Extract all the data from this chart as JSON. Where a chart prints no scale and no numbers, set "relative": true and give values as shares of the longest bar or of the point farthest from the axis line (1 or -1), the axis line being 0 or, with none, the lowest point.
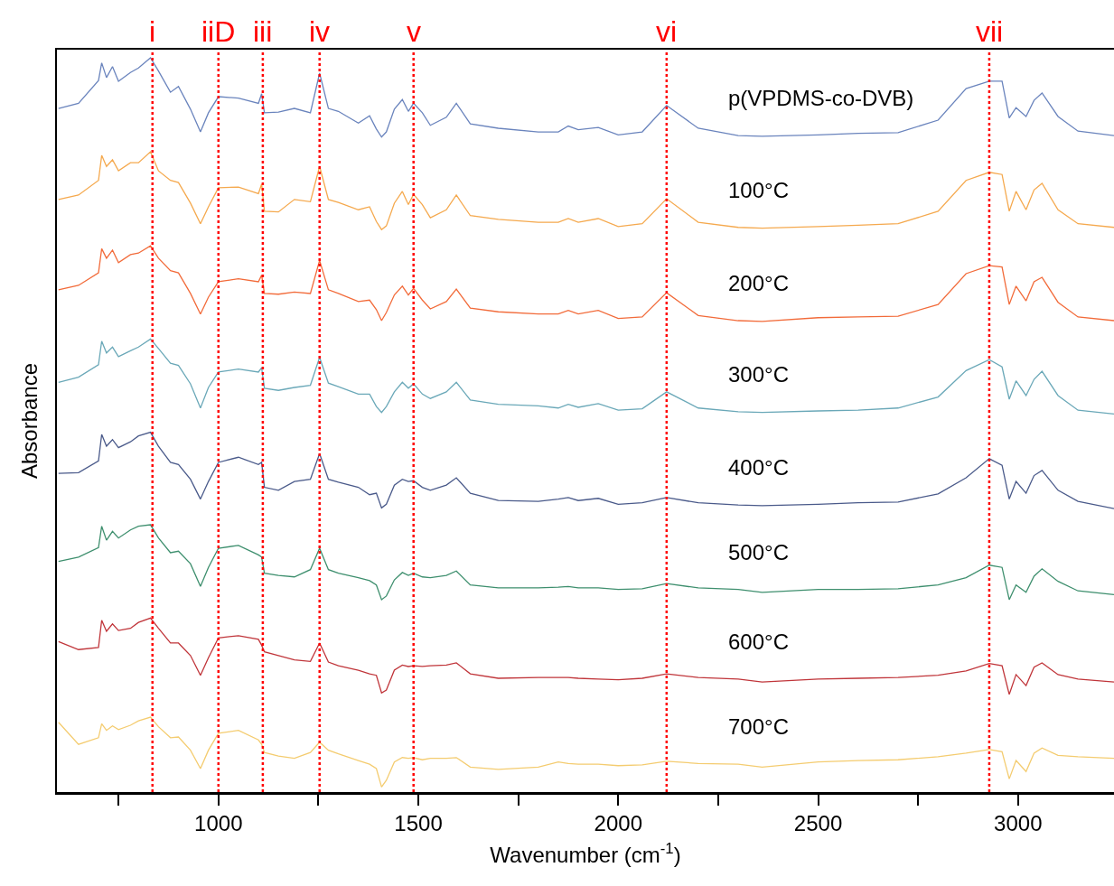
{
  "chart_data": {
    "type": "line",
    "relative": true,
    "xlabel": "Wavenumber (cm$^{-1}$)",
    "ylabel": "Absorbance",
    "x": [
      600,
      650,
      700,
      708,
      720,
      735,
      750,
      780,
      800,
      830,
      850,
      880,
      900,
      930,
      955,
      975,
      1000,
      1050,
      1100,
      1108,
      1115,
      1150,
      1190,
      1230,
      1253,
      1275,
      1300,
      1350,
      1378,
      1395,
      1408,
      1420,
      1440,
      1460,
      1475,
      1488,
      1510,
      1530,
      1570,
      1595,
      1630,
      1700,
      1800,
      1850,
      1875,
      1900,
      1950,
      2000,
      2060,
      2121,
      2200,
      2300,
      2360,
      2500,
      2600,
      2700,
      2800,
      2870,
      2928,
      2960,
      2978,
      2995,
      3020,
      3040,
      3060,
      3100,
      3150,
      3240
    ],
    "xlim": [
      596,
      3240
    ],
    "xticks": [
      {
        "value": 750,
        "label": null
      },
      1000,
      {
        "value": 1250,
        "label": null
      },
      1500,
      {
        "value": 1750,
        "label": null
      },
      2000,
      {
        "value": 2250,
        "label": null
      },
      2500,
      {
        "value": 2750,
        "label": null
      },
      3000
    ],
    "tick_labels": "x",
    "grid": false,
    "legend": false,
    "marker": "none",
    "line_style": "solid",
    "series": [
      {
        "name": "p(VPDMS-co-DVB)",
        "color": "#6a84bd",
        "values": [
          0.931,
          0.938,
          0.969,
          0.993,
          0.973,
          0.988,
          0.968,
          0.98,
          0.986,
          1,
          0.982,
          0.953,
          0.961,
          0.93,
          0.899,
          0.925,
          0.947,
          0.945,
          0.938,
          0.951,
          0.925,
          0.926,
          0.931,
          0.925,
          0.979,
          0.931,
          0.927,
          0.911,
          0.921,
          0.903,
          0.892,
          0.899,
          0.93,
          0.943,
          0.927,
          0.938,
          0.925,
          0.908,
          0.919,
          0.938,
          0.91,
          0.904,
          0.899,
          0.899,
          0.907,
          0.902,
          0.905,
          0.895,
          0.899,
          0.935,
          0.904,
          0.894,
          0.893,
          0.895,
          0.897,
          0.898,
          0.915,
          0.958,
          0.968,
          0.968,
          0.918,
          0.932,
          0.92,
          0.942,
          0.952,
          0.92,
          0.9,
          0.894
        ]
      },
      {
        "name": "100°C",
        "color": "#f5a94e",
        "values": [
          0.807,
          0.813,
          0.833,
          0.867,
          0.852,
          0.861,
          0.846,
          0.857,
          0.857,
          0.872,
          0.846,
          0.833,
          0.83,
          0.802,
          0.774,
          0.797,
          0.823,
          0.824,
          0.815,
          0.828,
          0.791,
          0.79,
          0.807,
          0.804,
          0.852,
          0.807,
          0.803,
          0.793,
          0.797,
          0.777,
          0.766,
          0.771,
          0.802,
          0.818,
          0.8,
          0.814,
          0.8,
          0.782,
          0.793,
          0.813,
          0.785,
          0.78,
          0.776,
          0.776,
          0.781,
          0.776,
          0.781,
          0.77,
          0.774,
          0.808,
          0.776,
          0.769,
          0.768,
          0.77,
          0.772,
          0.774,
          0.791,
          0.833,
          0.844,
          0.841,
          0.791,
          0.818,
          0.793,
          0.82,
          0.829,
          0.793,
          0.774,
          0.769
        ]
      },
      {
        "name": "200°C",
        "color": "#f26b3a",
        "values": [
          0.684,
          0.69,
          0.707,
          0.74,
          0.727,
          0.738,
          0.721,
          0.732,
          0.734,
          0.744,
          0.727,
          0.71,
          0.707,
          0.679,
          0.651,
          0.674,
          0.695,
          0.699,
          0.695,
          0.704,
          0.679,
          0.678,
          0.681,
          0.679,
          0.724,
          0.684,
          0.679,
          0.668,
          0.67,
          0.657,
          0.642,
          0.653,
          0.677,
          0.689,
          0.677,
          0.686,
          0.67,
          0.658,
          0.668,
          0.685,
          0.659,
          0.654,
          0.651,
          0.651,
          0.656,
          0.651,
          0.656,
          0.645,
          0.647,
          0.68,
          0.649,
          0.642,
          0.641,
          0.646,
          0.647,
          0.648,
          0.664,
          0.706,
          0.717,
          0.715,
          0.664,
          0.689,
          0.669,
          0.695,
          0.701,
          0.667,
          0.647,
          0.642
        ]
      },
      {
        "name": "300°C",
        "color": "#6aa8b8",
        "values": [
          0.558,
          0.565,
          0.582,
          0.614,
          0.598,
          0.606,
          0.593,
          0.601,
          0.606,
          0.617,
          0.604,
          0.584,
          0.581,
          0.556,
          0.523,
          0.551,
          0.572,
          0.576,
          0.572,
          0.578,
          0.55,
          0.547,
          0.551,
          0.554,
          0.592,
          0.557,
          0.552,
          0.542,
          0.542,
          0.525,
          0.517,
          0.525,
          0.545,
          0.558,
          0.55,
          0.556,
          0.542,
          0.536,
          0.545,
          0.558,
          0.534,
          0.528,
          0.526,
          0.523,
          0.528,
          0.524,
          0.529,
          0.52,
          0.522,
          0.545,
          0.523,
          0.518,
          0.517,
          0.519,
          0.52,
          0.523,
          0.538,
          0.574,
          0.589,
          0.579,
          0.535,
          0.56,
          0.54,
          0.562,
          0.573,
          0.54,
          0.52,
          0.515
        ]
      },
      {
        "name": "400°C",
        "color": "#4a5a8a",
        "values": [
          0.434,
          0.435,
          0.451,
          0.487,
          0.471,
          0.48,
          0.469,
          0.477,
          0.485,
          0.49,
          0.471,
          0.449,
          0.446,
          0.426,
          0.399,
          0.423,
          0.449,
          0.456,
          0.446,
          0.449,
          0.415,
          0.411,
          0.423,
          0.426,
          0.461,
          0.426,
          0.422,
          0.415,
          0.405,
          0.407,
          0.387,
          0.392,
          0.418,
          0.426,
          0.423,
          0.424,
          0.415,
          0.411,
          0.418,
          0.428,
          0.407,
          0.397,
          0.396,
          0.399,
          0.401,
          0.397,
          0.4,
          0.392,
          0.394,
          0.401,
          0.394,
          0.391,
          0.39,
          0.392,
          0.394,
          0.395,
          0.406,
          0.428,
          0.454,
          0.445,
          0.399,
          0.423,
          0.407,
          0.431,
          0.438,
          0.411,
          0.396,
          0.386
        ]
      },
      {
        "name": "500°C",
        "color": "#3e8f6e",
        "values": [
          0.314,
          0.32,
          0.333,
          0.362,
          0.343,
          0.355,
          0.346,
          0.357,
          0.362,
          0.364,
          0.346,
          0.326,
          0.328,
          0.311,
          0.28,
          0.306,
          0.332,
          0.336,
          0.323,
          0.32,
          0.298,
          0.295,
          0.293,
          0.303,
          0.332,
          0.303,
          0.298,
          0.292,
          0.288,
          0.282,
          0.262,
          0.267,
          0.289,
          0.299,
          0.295,
          0.298,
          0.293,
          0.292,
          0.295,
          0.301,
          0.282,
          0.278,
          0.278,
          0.279,
          0.28,
          0.278,
          0.278,
          0.276,
          0.277,
          0.284,
          0.278,
          0.276,
          0.272,
          0.276,
          0.276,
          0.277,
          0.282,
          0.292,
          0.309,
          0.306,
          0.262,
          0.282,
          0.272,
          0.294,
          0.304,
          0.287,
          0.274,
          0.269
        ]
      },
      {
        "name": "600°C",
        "color": "#c0353a",
        "values": [
          0.205,
          0.194,
          0.197,
          0.234,
          0.219,
          0.229,
          0.22,
          0.223,
          0.231,
          0.237,
          0.223,
          0.203,
          0.203,
          0.186,
          0.159,
          0.183,
          0.21,
          0.213,
          0.208,
          0.2,
          0.191,
          0.186,
          0.18,
          0.178,
          0.203,
          0.177,
          0.172,
          0.166,
          0.161,
          0.159,
          0.135,
          0.139,
          0.166,
          0.173,
          0.171,
          0.172,
          0.171,
          0.172,
          0.173,
          0.176,
          0.161,
          0.155,
          0.156,
          0.156,
          0.156,
          0.155,
          0.154,
          0.153,
          0.155,
          0.161,
          0.156,
          0.154,
          0.15,
          0.154,
          0.155,
          0.156,
          0.159,
          0.165,
          0.175,
          0.172,
          0.133,
          0.16,
          0.145,
          0.17,
          0.176,
          0.16,
          0.154,
          0.15
        ]
      },
      {
        "name": "700°C",
        "color": "#f4cc70",
        "values": [
          0.095,
          0.065,
          0.074,
          0.093,
          0.084,
          0.09,
          0.085,
          0.091,
          0.097,
          0.102,
          0.089,
          0.074,
          0.075,
          0.057,
          0.032,
          0.057,
          0.08,
          0.084,
          0.071,
          0.065,
          0.054,
          0.049,
          0.046,
          0.054,
          0.068,
          0.057,
          0.052,
          0.043,
          0.038,
          0.032,
          0.007,
          0.016,
          0.041,
          0.047,
          0.046,
          0.047,
          0.044,
          0.046,
          0.046,
          0.047,
          0.034,
          0.031,
          0.034,
          0.041,
          0.039,
          0.038,
          0.038,
          0.036,
          0.037,
          0.042,
          0.039,
          0.038,
          0.034,
          0.041,
          0.043,
          0.044,
          0.048,
          0.053,
          0.058,
          0.055,
          0.018,
          0.043,
          0.028,
          0.053,
          0.06,
          0.05,
          0.048,
          0.046
        ]
      }
    ],
    "ref_lines": [
      {
        "axis": "x",
        "value": 835,
        "label": "i",
        "color": "#ff0000",
        "line_style": "dotted"
      },
      {
        "axis": "x",
        "value": 1000,
        "label": "iiD",
        "color": "#ff0000",
        "line_style": "dotted"
      },
      {
        "axis": "x",
        "value": 1111,
        "label": "iii",
        "color": "#ff0000",
        "line_style": "dotted"
      },
      {
        "axis": "x",
        "value": 1253,
        "label": "iv",
        "color": "#ff0000",
        "line_style": "dotted"
      },
      {
        "axis": "x",
        "value": 1488,
        "label": "v",
        "color": "#ff0000",
        "line_style": "dotted"
      },
      {
        "axis": "x",
        "value": 2121,
        "label": "vi",
        "color": "#ff0000",
        "line_style": "dotted"
      },
      {
        "axis": "x",
        "value": 2928,
        "label": "vii",
        "color": "#ff0000",
        "line_style": "dotted"
      }
    ]
  }
}
